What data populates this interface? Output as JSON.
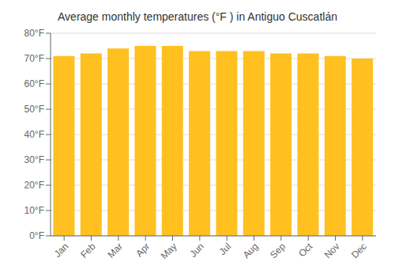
{
  "chart_data": {
    "type": "bar",
    "title": "Average monthly temperatures (°F ) in Antiguo Cuscatlán",
    "categories": [
      "Jan",
      "Feb",
      "Mar",
      "Apr",
      "May",
      "Jun",
      "Jul",
      "Aug",
      "Sep",
      "Oct",
      "Nov",
      "Dec"
    ],
    "values": [
      71,
      72,
      74,
      75,
      75,
      73,
      73,
      73,
      72,
      72,
      71,
      70
    ],
    "color": "#FFC020",
    "ylim": [
      0,
      80
    ],
    "yticks": [
      {
        "value": 0,
        "label": "0°F"
      },
      {
        "value": 10,
        "label": "10°F"
      },
      {
        "value": 20,
        "label": "20°F"
      },
      {
        "value": 30,
        "label": "30°F"
      },
      {
        "value": 40,
        "label": "40°F"
      },
      {
        "value": 50,
        "label": "50°F"
      },
      {
        "value": 60,
        "label": "60°F"
      },
      {
        "value": 70,
        "label": "70°F"
      },
      {
        "value": 80,
        "label": "80°F"
      }
    ],
    "grid": true
  }
}
